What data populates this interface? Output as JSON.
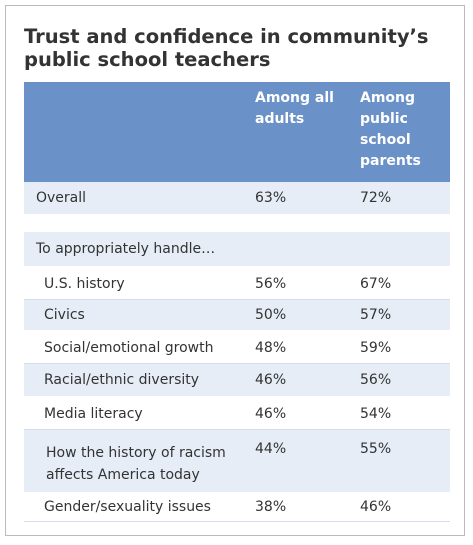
{
  "header": {
    "title": "Trust and confidence in community’s public school teachers"
  },
  "table": {
    "columns": [
      "Among all adults",
      "Among public school parents"
    ],
    "rows": [
      [
        "Overall",
        "63%",
        "72%"
      ],
      [
        "To appropriately handle…",
        null,
        null
      ],
      [
        "U.S. history",
        "56%",
        "67%"
      ],
      [
        "Civics",
        "50%",
        "57%"
      ],
      [
        "Social/emotional growth",
        "48%",
        "59%"
      ],
      [
        "Racial/ethnic diversity",
        "46%",
        "56%"
      ],
      [
        "Media literacy",
        "46%",
        "54%"
      ],
      [
        "How the history of racism affects America today",
        "44%",
        "55%"
      ],
      [
        "Gender/sexuality issues",
        "38%",
        "46%"
      ]
    ]
  }
}
